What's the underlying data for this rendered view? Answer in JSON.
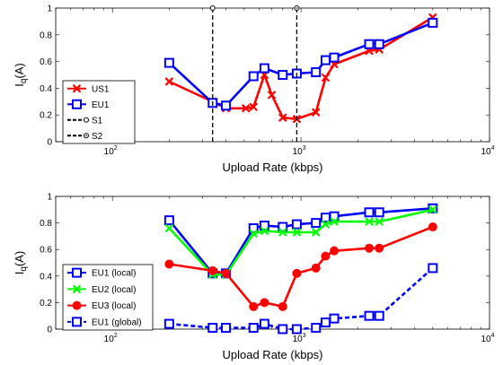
{
  "chart_data": [
    {
      "type": "line",
      "xscale": "log",
      "xlim": [
        50,
        10000
      ],
      "ylim": [
        0,
        1
      ],
      "grid": false,
      "legend": "left",
      "xlabel": "Upload Rate (kbps)",
      "ylabel_main": "I",
      "ylabel_sub": "q",
      "ylabel_unit": "(A)",
      "yticks": [
        "0",
        "0.2",
        "0.4",
        "0.6",
        "0.8",
        "1"
      ],
      "xtick_base": [
        "10",
        "10",
        "10",
        "10"
      ],
      "xtick_exp": [
        "2",
        "3",
        "4"
      ],
      "series": [
        {
          "name": "US1",
          "color": "#ff0000",
          "marker": "x",
          "dash": "solid",
          "x": [
            200,
            340,
            400,
            510,
            560,
            640,
            700,
            800,
            950,
            1200,
            1350,
            1500,
            2300,
            2600,
            5000
          ],
          "y": [
            0.45,
            0.3,
            0.25,
            0.25,
            0.26,
            0.5,
            0.35,
            0.18,
            0.17,
            0.22,
            0.48,
            0.58,
            0.68,
            0.69,
            0.93
          ]
        },
        {
          "name": "EU1",
          "color": "#0000ff",
          "marker": "square",
          "dash": "solid",
          "x": [
            200,
            340,
            400,
            560,
            640,
            800,
            950,
            1200,
            1350,
            1500,
            2300,
            2600,
            5000
          ],
          "y": [
            0.59,
            0.29,
            0.27,
            0.49,
            0.55,
            0.5,
            0.51,
            0.52,
            0.61,
            0.63,
            0.73,
            0.73,
            0.89
          ]
        },
        {
          "name": "S1",
          "color": "#000000",
          "marker": "circle",
          "dash": "dashed",
          "vline": 340
        },
        {
          "name": "S2",
          "color": "#000000",
          "marker": "circle-dot",
          "dash": "dashed",
          "vline": 950
        }
      ]
    },
    {
      "type": "line",
      "xscale": "log",
      "xlim": [
        50,
        10000
      ],
      "ylim": [
        0,
        1
      ],
      "grid": false,
      "legend": "bottom-left",
      "xlabel": "Upload Rate (kbps)",
      "ylabel_main": "I",
      "ylabel_sub": "q",
      "ylabel_unit": "(A)",
      "yticks": [
        "0",
        "0.2",
        "0.4",
        "0.6",
        "0.8",
        "1"
      ],
      "xtick_base": [
        "10",
        "10",
        "10",
        "10"
      ],
      "xtick_exp": [
        "2",
        "3",
        "4"
      ],
      "series": [
        {
          "name": "EU1 (local)",
          "color": "#0000ff",
          "marker": "square",
          "dash": "solid",
          "x": [
            200,
            340,
            400,
            560,
            640,
            800,
            950,
            1200,
            1350,
            1500,
            2300,
            2600,
            5000
          ],
          "y": [
            0.82,
            0.42,
            0.42,
            0.76,
            0.78,
            0.77,
            0.79,
            0.8,
            0.84,
            0.85,
            0.88,
            0.88,
            0.91
          ]
        },
        {
          "name": "EU2 (local)",
          "color": "#00ff00",
          "marker": "x",
          "dash": "solid",
          "x": [
            200,
            340,
            400,
            560,
            640,
            800,
            950,
            1200,
            1350,
            1500,
            2300,
            2600,
            5000
          ],
          "y": [
            0.76,
            0.41,
            0.41,
            0.72,
            0.74,
            0.73,
            0.73,
            0.73,
            0.79,
            0.81,
            0.81,
            0.81,
            0.9
          ]
        },
        {
          "name": "EU3 (local)",
          "color": "#ff0000",
          "marker": "circle",
          "dash": "solid",
          "x": [
            200,
            340,
            400,
            560,
            640,
            800,
            950,
            1200,
            1350,
            1500,
            2300,
            2600,
            5000
          ],
          "y": [
            0.49,
            0.44,
            0.42,
            0.17,
            0.2,
            0.17,
            0.42,
            0.46,
            0.55,
            0.59,
            0.61,
            0.61,
            0.77
          ]
        },
        {
          "name": "EU1 (global)",
          "color": "#0000ff",
          "marker": "square",
          "dash": "dashed",
          "x": [
            200,
            340,
            400,
            560,
            640,
            800,
            950,
            1200,
            1350,
            1500,
            2300,
            2600,
            5000
          ],
          "y": [
            0.04,
            0.01,
            0.01,
            0.01,
            0.04,
            0.0,
            0.0,
            0.01,
            0.05,
            0.08,
            0.1,
            0.1,
            0.46
          ]
        }
      ]
    }
  ]
}
